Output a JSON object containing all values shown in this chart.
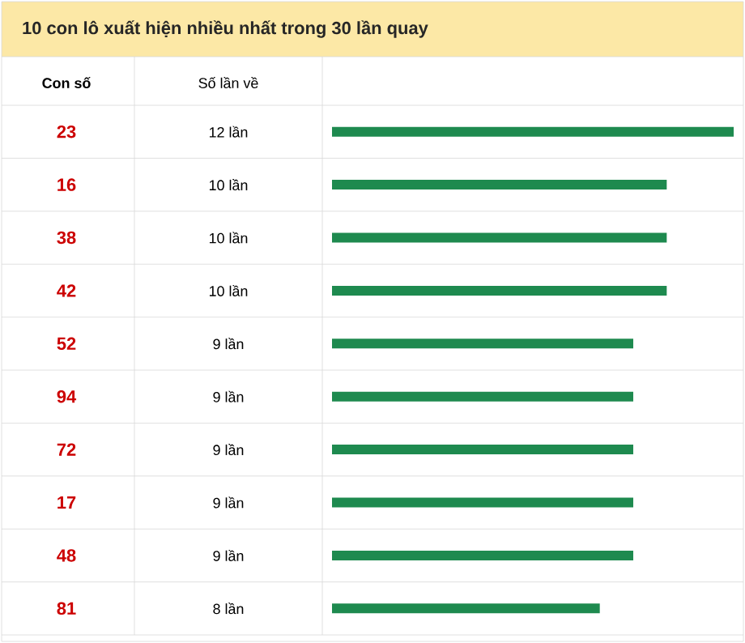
{
  "chart_data": {
    "type": "bar",
    "orientation": "horizontal",
    "title": "10 con lô xuất hiện nhiều nhất trong 30 lần quay",
    "ylabel": "Con số",
    "xlabel": "Số lần về",
    "categories": [
      "23",
      "16",
      "38",
      "42",
      "52",
      "94",
      "72",
      "17",
      "48",
      "81"
    ],
    "values": [
      12,
      10,
      10,
      10,
      9,
      9,
      9,
      9,
      9,
      8
    ],
    "value_labels": [
      "12 lần",
      "10 lần",
      "10 lần",
      "10 lần",
      "9 lần",
      "9 lần",
      "9 lần",
      "9 lần",
      "9 lần",
      "8 lần"
    ],
    "color": "#1e8a4f"
  }
}
